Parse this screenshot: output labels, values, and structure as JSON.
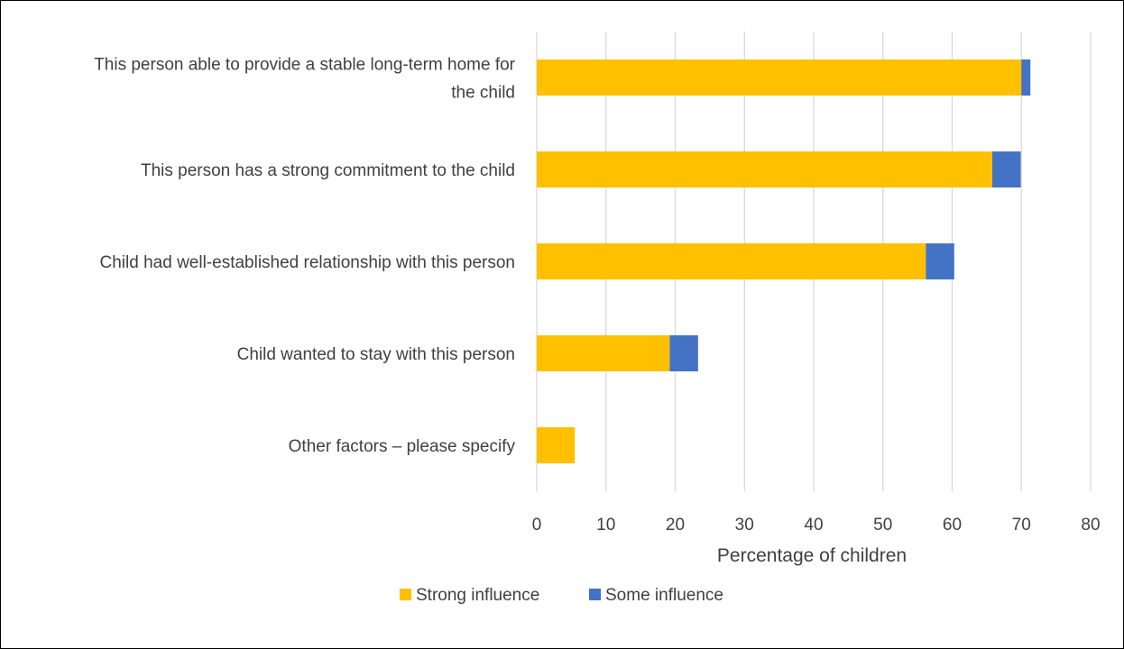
{
  "chart_data": {
    "type": "bar",
    "orientation": "horizontal",
    "stacked": true,
    "title": "",
    "xlabel": "Percentage of children",
    "ylabel": "",
    "xlim": [
      0,
      80
    ],
    "xticks": [
      "0",
      "10",
      "20",
      "30",
      "40",
      "50",
      "60",
      "70",
      "80"
    ],
    "grid": true,
    "legend_position": "bottom",
    "categories": [
      [
        "This person able to provide a stable long-term home for",
        "the child"
      ],
      [
        "This person has a strong commitment to the child"
      ],
      [
        "Child had well-established relationship with this person"
      ],
      [
        "Child wanted to stay with this person"
      ],
      [
        "Other factors – please specify"
      ]
    ],
    "series": [
      {
        "name": "Strong influence",
        "color": "#FFC000",
        "values": [
          70.0,
          65.8,
          56.2,
          19.2,
          5.5
        ]
      },
      {
        "name": "Some influence",
        "color": "#4472C4",
        "values": [
          1.3,
          4.1,
          4.1,
          4.1,
          0
        ]
      }
    ]
  }
}
